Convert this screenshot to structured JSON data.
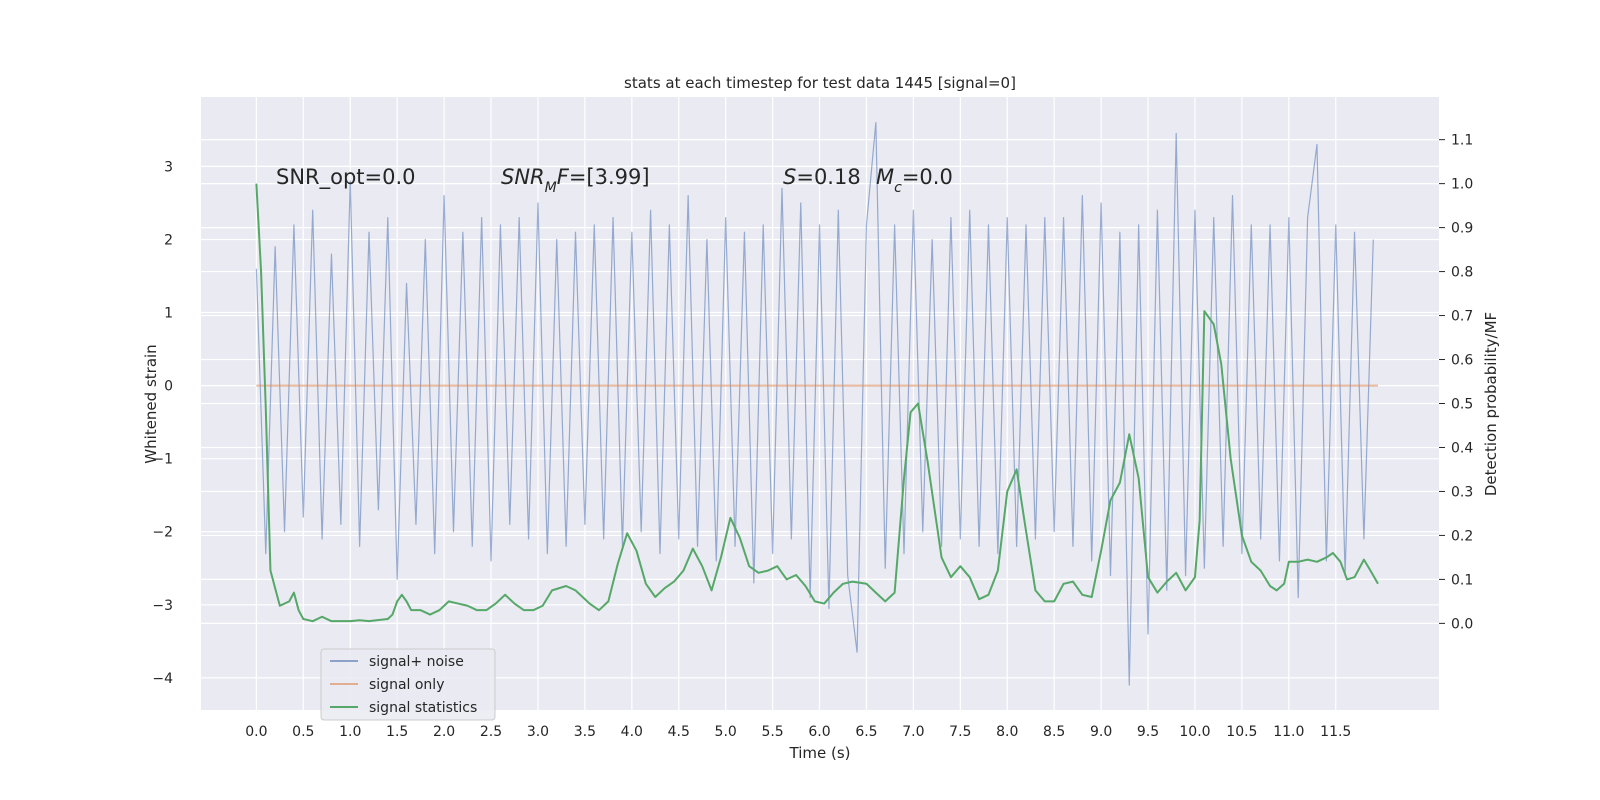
{
  "chart_data": {
    "type": "line",
    "title": "stats at each timestep for test data 1445 [signal=0]",
    "xlabel": "Time (s)",
    "ylabel": "Whitened strain",
    "y2label": "Detection probability/MF",
    "grid": true,
    "legend": "lower left",
    "annotations": [
      [
        "SNR_opt=0.0"
      ],
      [
        "SNR",
        "M",
        "F",
        "=[3.99]"
      ],
      [
        "S",
        "=0.18"
      ],
      [
        "M",
        "c",
        "=0.0"
      ]
    ],
    "xlim": [
      -0.59,
      12.6
    ],
    "ylim": [
      -4.44,
      3.95
    ],
    "y2lim": [
      -0.197,
      1.197
    ],
    "xticks": [
      {
        "value": 0,
        "label": "0.0"
      },
      0.5,
      {
        "value": 1,
        "label": "1.0"
      },
      1.5,
      {
        "value": 2,
        "label": "2.0"
      },
      2.5,
      {
        "value": 3,
        "label": "3.0"
      },
      3.5,
      {
        "value": 4,
        "label": "4.0"
      },
      4.5,
      {
        "value": 5,
        "label": "5.0"
      },
      5.5,
      {
        "value": 6,
        "label": "6.0"
      },
      6.5,
      {
        "value": 7,
        "label": "7.0"
      },
      7.5,
      {
        "value": 8,
        "label": "8.0"
      },
      8.5,
      {
        "value": 9,
        "label": "9.0"
      },
      9.5,
      {
        "value": 10,
        "label": "10.0"
      },
      10.5,
      {
        "value": 11,
        "label": "11.0"
      },
      11.5
    ],
    "yticks": [
      {
        "value": -4,
        "label": "−4"
      },
      {
        "value": -3,
        "label": "−3"
      },
      {
        "value": -2,
        "label": "−2"
      },
      {
        "value": -1,
        "label": "−1"
      },
      0,
      1,
      2,
      3
    ],
    "y2ticks": [
      {
        "value": 0,
        "label": "0.0"
      },
      0.1,
      0.2,
      0.3,
      0.4,
      0.5,
      0.6,
      0.7,
      0.8,
      0.9,
      {
        "value": 1,
        "label": "1.0"
      },
      1.1
    ],
    "series": [
      {
        "name": "signal+ noise",
        "color": "#4c72b0",
        "x": [
          0,
          0.1,
          0.2,
          0.3,
          0.4,
          0.5,
          0.6,
          0.7,
          0.8,
          0.9,
          1,
          1.1,
          1.2,
          1.3,
          1.4,
          1.5,
          1.6,
          1.7,
          1.8,
          1.9,
          2,
          2.1,
          2.2,
          2.3,
          2.4,
          2.5,
          2.6,
          2.7,
          2.8,
          2.9,
          3,
          3.1,
          3.2,
          3.3,
          3.4,
          3.5,
          3.6,
          3.7,
          3.8,
          3.9,
          4,
          4.1,
          4.2,
          4.3,
          4.4,
          4.5,
          4.6,
          4.7,
          4.8,
          4.9,
          5,
          5.1,
          5.2,
          5.3,
          5.4,
          5.5,
          5.6,
          5.7,
          5.8,
          5.9,
          6,
          6.1,
          6.2,
          6.3,
          6.4,
          6.5,
          6.6,
          6.7,
          6.8,
          6.9,
          7,
          7.1,
          7.2,
          7.3,
          7.4,
          7.5,
          7.6,
          7.7,
          7.8,
          7.9,
          8,
          8.1,
          8.2,
          8.3,
          8.4,
          8.5,
          8.6,
          8.7,
          8.8,
          8.9,
          9,
          9.1,
          9.2,
          9.3,
          9.4,
          9.5,
          9.6,
          9.7,
          9.8,
          9.9,
          10,
          10.1,
          10.2,
          10.3,
          10.4,
          10.5,
          10.6,
          10.7,
          10.8,
          10.9,
          11,
          11.1,
          11.2,
          11.3,
          11.4,
          11.5,
          11.6,
          11.7,
          11.8,
          11.9
        ],
        "values": [
          1.6,
          -2.3,
          1.9,
          -2.0,
          2.2,
          -1.8,
          2.4,
          -2.1,
          1.8,
          -1.9,
          2.8,
          -2.2,
          2.1,
          -1.7,
          2.3,
          -2.65,
          1.4,
          -1.9,
          2.0,
          -2.3,
          2.6,
          -2.0,
          2.1,
          -2.2,
          2.3,
          -2.4,
          2.2,
          -1.9,
          2.3,
          -2.1,
          2.5,
          -2.3,
          2.0,
          -2.2,
          2.1,
          -1.9,
          2.2,
          -2.1,
          2.3,
          -2.2,
          2.1,
          -2.0,
          2.4,
          -2.3,
          2.2,
          -2.1,
          2.6,
          -2.2,
          2.0,
          -2.4,
          2.3,
          -2.2,
          2.1,
          -2.7,
          2.2,
          -2.3,
          2.7,
          -2.1,
          2.5,
          -2.9,
          2.2,
          -3.05,
          2.4,
          -2.6,
          -3.65,
          2.2,
          3.6,
          -2.5,
          2.2,
          -2.3,
          2.4,
          -2.0,
          2.0,
          -2.2,
          2.3,
          -2.1,
          2.4,
          -2.2,
          2.2,
          -2.3,
          2.3,
          -2.2,
          2.2,
          -2.1,
          2.3,
          -2.0,
          2.3,
          -2.2,
          2.6,
          -2.4,
          2.5,
          -2.6,
          2.1,
          -4.1,
          2.2,
          -3.4,
          2.4,
          -2.8,
          3.45,
          -2.6,
          2.4,
          -2.5,
          2.3,
          -2.2,
          2.6,
          -2.3,
          2.2,
          -2.1,
          2.2,
          -2.4,
          2.3,
          -2.9,
          2.3,
          3.3,
          -2.4,
          2.2,
          -2.6,
          2.1,
          -2.1,
          2.0
        ]
      },
      {
        "name": "signal only",
        "color": "#dd8452",
        "x": [
          0,
          11.95
        ],
        "values": [
          0,
          0
        ]
      },
      {
        "name": "signal statistics",
        "color": "#55a868",
        "axis": "y2",
        "x": [
          0,
          0.05,
          0.1,
          0.15,
          0.25,
          0.35,
          0.4,
          0.45,
          0.5,
          0.6,
          0.7,
          0.8,
          1.0,
          1.1,
          1.2,
          1.4,
          1.45,
          1.5,
          1.55,
          1.6,
          1.65,
          1.75,
          1.85,
          1.95,
          2.05,
          2.15,
          2.25,
          2.35,
          2.45,
          2.55,
          2.65,
          2.75,
          2.85,
          2.95,
          3.05,
          3.15,
          3.3,
          3.4,
          3.55,
          3.65,
          3.75,
          3.85,
          3.95,
          4.05,
          4.15,
          4.25,
          4.35,
          4.45,
          4.55,
          4.65,
          4.75,
          4.85,
          4.95,
          5.05,
          5.15,
          5.25,
          5.35,
          5.45,
          5.55,
          5.65,
          5.75,
          5.85,
          5.95,
          6.05,
          6.15,
          6.25,
          6.35,
          6.5,
          6.6,
          6.7,
          6.8,
          6.9,
          6.97,
          7.05,
          7.15,
          7.3,
          7.4,
          7.5,
          7.6,
          7.7,
          7.8,
          7.9,
          8.0,
          8.1,
          8.2,
          8.3,
          8.4,
          8.5,
          8.6,
          8.7,
          8.8,
          8.9,
          9.0,
          9.1,
          9.2,
          9.3,
          9.4,
          9.5,
          9.6,
          9.7,
          9.8,
          9.9,
          10.0,
          10.05,
          10.1,
          10.2,
          10.28,
          10.38,
          10.5,
          10.6,
          10.7,
          10.8,
          10.87,
          10.95,
          11.0,
          11.1,
          11.2,
          11.3,
          11.4,
          11.47,
          11.55,
          11.62,
          11.7,
          11.8,
          11.87,
          11.95
        ],
        "values": [
          1.0,
          0.8,
          0.49,
          0.12,
          0.04,
          0.05,
          0.07,
          0.03,
          0.01,
          0.005,
          0.015,
          0.005,
          0.005,
          0.007,
          0.005,
          0.01,
          0.02,
          0.05,
          0.065,
          0.05,
          0.03,
          0.03,
          0.02,
          0.03,
          0.05,
          0.045,
          0.04,
          0.03,
          0.03,
          0.045,
          0.065,
          0.045,
          0.03,
          0.03,
          0.04,
          0.075,
          0.085,
          0.075,
          0.045,
          0.03,
          0.05,
          0.135,
          0.205,
          0.165,
          0.09,
          0.06,
          0.08,
          0.095,
          0.12,
          0.17,
          0.13,
          0.075,
          0.15,
          0.24,
          0.195,
          0.13,
          0.115,
          0.12,
          0.13,
          0.1,
          0.11,
          0.085,
          0.05,
          0.045,
          0.07,
          0.09,
          0.095,
          0.09,
          0.07,
          0.05,
          0.07,
          0.33,
          0.48,
          0.5,
          0.37,
          0.15,
          0.105,
          0.13,
          0.105,
          0.055,
          0.065,
          0.12,
          0.3,
          0.35,
          0.21,
          0.075,
          0.05,
          0.05,
          0.09,
          0.095,
          0.065,
          0.06,
          0.165,
          0.28,
          0.32,
          0.43,
          0.33,
          0.105,
          0.07,
          0.095,
          0.115,
          0.075,
          0.105,
          0.235,
          0.71,
          0.68,
          0.59,
          0.375,
          0.2,
          0.14,
          0.12,
          0.085,
          0.075,
          0.09,
          0.14,
          0.14,
          0.145,
          0.14,
          0.15,
          0.16,
          0.14,
          0.1,
          0.105,
          0.145,
          0.12,
          0.09
        ]
      }
    ]
  }
}
